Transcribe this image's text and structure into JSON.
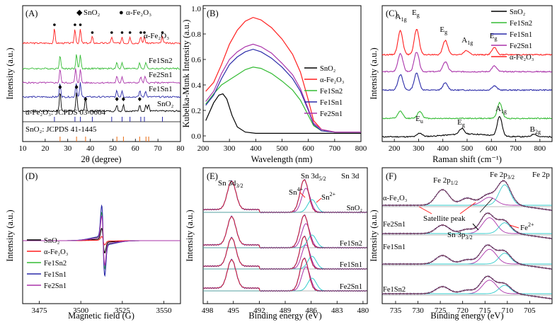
{
  "figure": {
    "colors": {
      "black": "#000000",
      "red": "#ff1f1f",
      "green": "#33bb33",
      "blue": "#2a2aa8",
      "purple": "#aa33aa",
      "cyan": "#33cccc",
      "orange": "#e86a10",
      "brown": "#8b2b1a",
      "gray": "#777777"
    }
  },
  "chart_data": [
    {
      "id": "A",
      "type": "line",
      "panel_label": "(A)",
      "xlabel": "2θ (degree)",
      "ylabel": "Intensity (a.u.)",
      "xlim": [
        10,
        80
      ],
      "xticks": [
        10,
        20,
        30,
        40,
        50,
        60,
        70,
        80
      ],
      "legend": [
        {
          "marker": "◆",
          "text": "SnO₂"
        },
        {
          "marker": "●",
          "text": "α-Fe₂O₃"
        }
      ],
      "series": [
        {
          "name": "α-Fe₂O₃",
          "color": "#ff1f1f",
          "peaks": [
            24.1,
            33.2,
            35.6,
            40.9,
            49.5,
            54.1,
            57.6,
            62.4,
            64.0,
            72.0
          ]
        },
        {
          "name": "Fe1Sn2",
          "color": "#33bb33",
          "peaks": [
            26.6,
            33.9,
            35.6,
            51.8,
            54.1,
            61.9,
            64.7
          ]
        },
        {
          "name": "Fe2Sn1",
          "color": "#aa33aa",
          "peaks": [
            26.6,
            33.5,
            35.6,
            51.8,
            54.1,
            62.4,
            64.3
          ]
        },
        {
          "name": "Fe1Sn1",
          "color": "#2a2aa8",
          "peaks": [
            26.6,
            33.7,
            35.6,
            51.8,
            54.1,
            62.0,
            64.5
          ]
        },
        {
          "name": "SnO₂",
          "color": "#000000",
          "peaks": [
            26.6,
            33.9,
            37.9,
            51.8,
            54.7,
            61.9,
            64.7,
            65.9
          ]
        }
      ],
      "reference": [
        {
          "text": "α-Fe₂O₃: JCPDS 03-0664",
          "color": "#2a2aa8",
          "x": [
            24.1,
            33.2,
            35.6,
            40.9,
            49.5,
            54.1,
            57.6,
            62.4,
            64.0,
            72.0
          ]
        },
        {
          "text": "SnO₂: JCPDS 41-1445",
          "color": "#e86a10",
          "x": [
            26.6,
            33.9,
            37.9,
            51.8,
            54.7,
            61.9,
            64.7,
            65.9
          ]
        }
      ]
    },
    {
      "id": "B",
      "type": "line",
      "panel_label": "(B)",
      "xlabel": "Wavelength (nm)",
      "ylabel": "Kubelka-Munk Intensity (a.u.)",
      "xlim": [
        200,
        800
      ],
      "ylim": [
        0,
        1.0
      ],
      "xticks": [
        200,
        300,
        400,
        500,
        600,
        700,
        800
      ],
      "yticks": [
        0.0,
        0.2,
        0.4,
        0.6,
        0.8,
        1.0
      ],
      "series": [
        {
          "name": "SnO₂",
          "color": "#000000",
          "x": [
            210,
            240,
            260,
            275,
            290,
            310,
            330,
            360,
            400,
            450,
            500,
            600,
            800
          ],
          "y": [
            0.12,
            0.26,
            0.32,
            0.33,
            0.29,
            0.16,
            0.07,
            0.03,
            0.02,
            0.02,
            0.02,
            0.02,
            0.02
          ]
        },
        {
          "name": "α-Fe₂O₃",
          "color": "#ff1f1f",
          "x": [
            210,
            240,
            270,
            300,
            330,
            360,
            390,
            420,
            460,
            500,
            540,
            570,
            600,
            620,
            650,
            700,
            800
          ],
          "y": [
            0.35,
            0.42,
            0.56,
            0.72,
            0.83,
            0.9,
            0.93,
            0.91,
            0.85,
            0.76,
            0.64,
            0.5,
            0.28,
            0.12,
            0.05,
            0.03,
            0.03
          ]
        },
        {
          "name": "Fe1Sn2",
          "color": "#33bb33",
          "x": [
            210,
            240,
            270,
            300,
            330,
            360,
            390,
            420,
            460,
            500,
            540,
            570,
            600,
            620,
            650,
            700,
            800
          ],
          "y": [
            0.25,
            0.33,
            0.4,
            0.44,
            0.48,
            0.52,
            0.54,
            0.53,
            0.49,
            0.43,
            0.36,
            0.28,
            0.16,
            0.08,
            0.04,
            0.03,
            0.03
          ]
        },
        {
          "name": "Fe1Sn1",
          "color": "#2a2aa8",
          "x": [
            210,
            240,
            270,
            300,
            330,
            360,
            390,
            420,
            460,
            500,
            540,
            570,
            600,
            620,
            650,
            700,
            800
          ],
          "y": [
            0.24,
            0.32,
            0.45,
            0.56,
            0.62,
            0.66,
            0.68,
            0.66,
            0.61,
            0.54,
            0.45,
            0.35,
            0.2,
            0.09,
            0.04,
            0.03,
            0.03
          ]
        },
        {
          "name": "Fe2Sn1",
          "color": "#aa33aa",
          "x": [
            210,
            240,
            270,
            300,
            330,
            360,
            390,
            420,
            460,
            500,
            540,
            570,
            600,
            620,
            650,
            700,
            800
          ],
          "y": [
            0.27,
            0.35,
            0.49,
            0.6,
            0.66,
            0.7,
            0.72,
            0.7,
            0.65,
            0.57,
            0.48,
            0.37,
            0.21,
            0.1,
            0.05,
            0.03,
            0.03
          ]
        }
      ]
    },
    {
      "id": "C",
      "type": "line",
      "panel_label": "(C)",
      "xlabel": "Raman shift (cm⁻¹)",
      "ylabel": "Intensity (a.u.)",
      "xlim": [
        150,
        850
      ],
      "xticks": [
        200,
        300,
        400,
        500,
        600,
        700,
        800
      ],
      "annotations": [
        {
          "text": "A",
          "sub": "1g",
          "x": 222
        },
        {
          "text": "E",
          "sub": "g",
          "x": 290
        },
        {
          "text": "E",
          "sub": "g",
          "x": 405
        },
        {
          "text": "A",
          "sub": "1g",
          "x": 495
        },
        {
          "text": "E",
          "sub": "g",
          "x": 610
        },
        {
          "text": "E",
          "sub": "u",
          "x": 305
        },
        {
          "text": "E",
          "sub": "g",
          "x": 477
        },
        {
          "text": "A",
          "sub": "1g",
          "x": 634
        },
        {
          "text": "B",
          "sub": "2g",
          "x": 776
        }
      ],
      "series": [
        {
          "name": "SnO₂",
          "color": "#000000",
          "peaks": [
            305,
            477,
            634,
            776
          ]
        },
        {
          "name": "Fe1Sn2",
          "color": "#33bb33",
          "peaks": [
            225,
            305,
            634
          ]
        },
        {
          "name": "Fe1Sn1",
          "color": "#2a2aa8",
          "peaks": [
            225,
            292,
            410,
            612
          ]
        },
        {
          "name": "Fe2Sn1",
          "color": "#aa33aa",
          "peaks": [
            225,
            292,
            410,
            612
          ]
        },
        {
          "name": "α-Fe₂O₃",
          "color": "#ff1f1f",
          "peaks": [
            225,
            292,
            410,
            498,
            612
          ]
        }
      ]
    },
    {
      "id": "D",
      "type": "line",
      "panel_label": "(D)",
      "xlabel": "Magnetic field (G)",
      "ylabel": "Intensity (a.u.)",
      "xlim": [
        3465,
        3560
      ],
      "xticks": [
        3475,
        3500,
        3525,
        3550
      ],
      "series": [
        {
          "name": "SnO₂",
          "color": "#000000",
          "amp": 0.35
        },
        {
          "name": "α-Fe₂O₃",
          "color": "#ff1f1f",
          "amp": 0.12
        },
        {
          "name": "Fe1Sn2",
          "color": "#33bb33",
          "amp": 0.8
        },
        {
          "name": "Fe1Sn1",
          "color": "#2a2aa8",
          "amp": 1.0
        },
        {
          "name": "Fe2Sn1",
          "color": "#aa33aa",
          "amp": 0.7
        }
      ]
    },
    {
      "id": "E",
      "type": "line",
      "panel_label": "(E)",
      "xlabel": "Binding energy (eV)",
      "ylabel": "Intensity (a.u.)",
      "xlim": [
        498.5,
        479.5
      ],
      "xticks": [
        498,
        495,
        492,
        489,
        486,
        483,
        480
      ],
      "region_label": "Sn 3d",
      "annotations": [
        {
          "text": "Sn 3d",
          "sub": "3/2"
        },
        {
          "text": "Sn 3d",
          "sub": "5/2"
        },
        {
          "text": "Sn",
          "sup": "4+"
        },
        {
          "text": "Sn",
          "sup": "2+"
        }
      ],
      "traces": [
        "SnO₂",
        "Fe1Sn2",
        "Fe1Sn1",
        "Fe2Sn1"
      ],
      "peaks": [
        495.2,
        486.8
      ]
    },
    {
      "id": "F",
      "type": "line",
      "panel_label": "(F)",
      "xlabel": "Binding energy (eV)",
      "ylabel": "Intensity (a.u.)",
      "xlim": [
        738,
        700
      ],
      "xticks": [
        735,
        730,
        725,
        720,
        715,
        710,
        705
      ],
      "region_label": "Fe 2p",
      "annotations": [
        {
          "text": "Fe 2p",
          "sub": "1/2"
        },
        {
          "text": "Fe 2p",
          "sub": "3/2"
        },
        {
          "text": "Satellite peak"
        },
        {
          "text": "Fe",
          "sup": "2+"
        },
        {
          "text": "Sn 3p",
          "sub": "3/2"
        }
      ],
      "traces": [
        "α-Fe₂O₃",
        "Fe2Sn1",
        "Fe1Sn1",
        "Fe1Sn2"
      ],
      "peaks": [
        724.5,
        719,
        714.5,
        710.8
      ]
    }
  ]
}
